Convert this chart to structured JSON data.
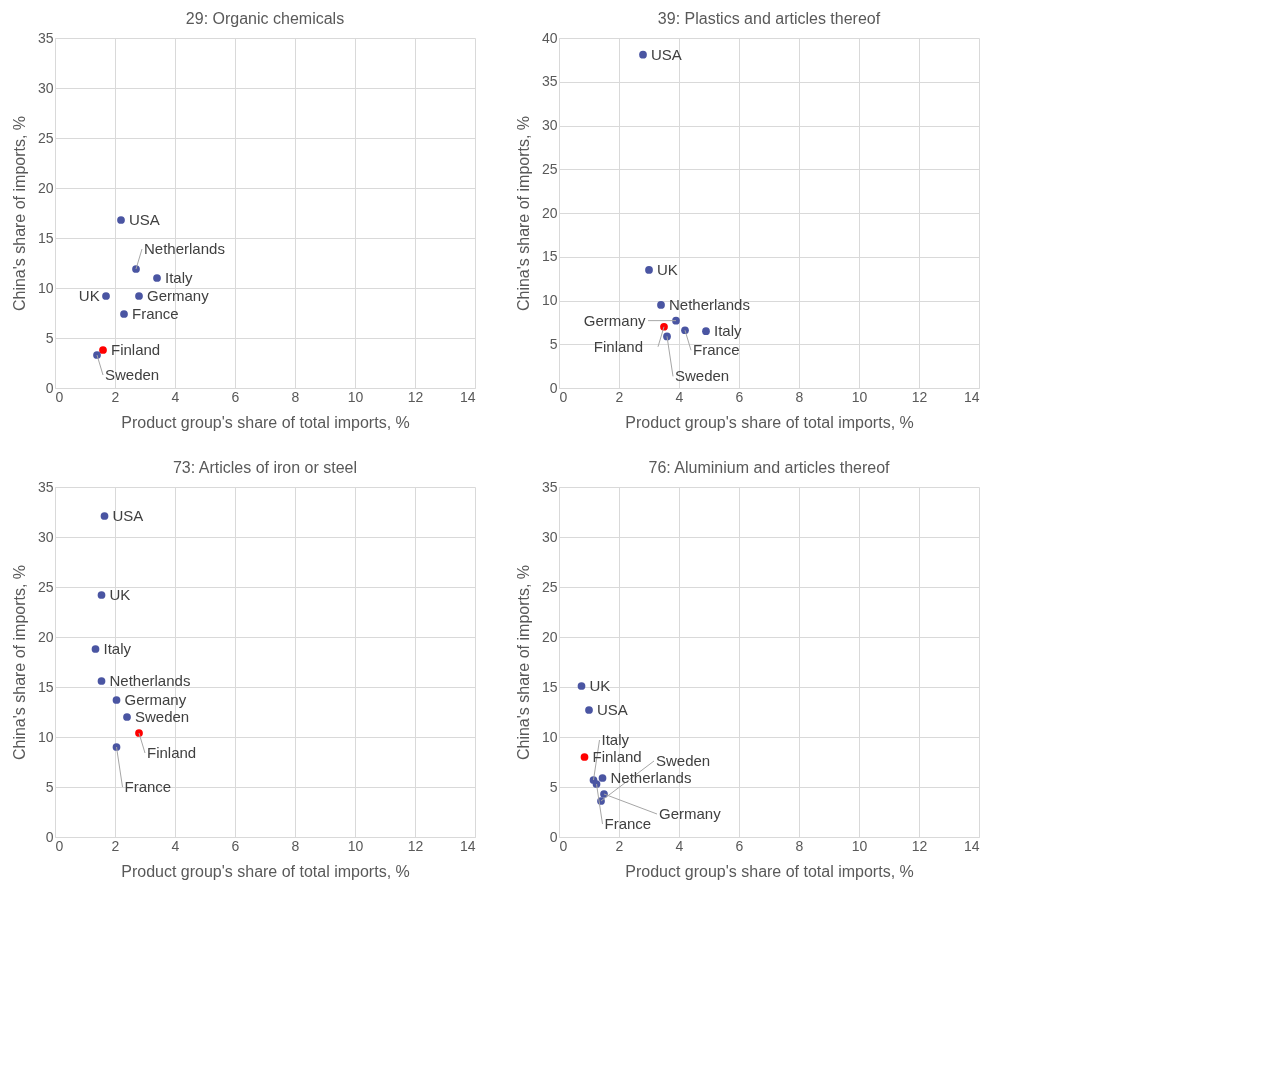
{
  "chart_data": [
    {
      "type": "scatter",
      "title": "29: Organic chemicals",
      "xlabel": "Product group's share of total imports, %",
      "ylabel": "China's share of imports, %",
      "xlim": [
        0,
        14
      ],
      "xticks": [
        0,
        2,
        4,
        6,
        8,
        10,
        12,
        14
      ],
      "ylim": [
        0,
        35
      ],
      "yticks": [
        0,
        5,
        10,
        15,
        20,
        25,
        30,
        35
      ],
      "grid": true,
      "marker": "circle",
      "series": [
        {
          "name": "USA",
          "color": "#4a55a2",
          "x": [
            2.2
          ],
          "values": [
            16.8
          ]
        },
        {
          "name": "Netherlands",
          "color": "#4a55a2",
          "x": [
            2.7
          ],
          "values": [
            11.9
          ]
        },
        {
          "name": "Italy",
          "color": "#4a55a2",
          "x": [
            3.4
          ],
          "values": [
            11.0
          ]
        },
        {
          "name": "UK",
          "color": "#4a55a2",
          "x": [
            1.7
          ],
          "values": [
            9.2
          ]
        },
        {
          "name": "Germany",
          "color": "#4a55a2",
          "x": [
            2.8
          ],
          "values": [
            9.2
          ]
        },
        {
          "name": "France",
          "color": "#4a55a2",
          "x": [
            2.3
          ],
          "values": [
            7.4
          ]
        },
        {
          "name": "Finland",
          "color": "#ff0000",
          "x": [
            1.6
          ],
          "values": [
            3.8
          ]
        },
        {
          "name": "Sweden",
          "color": "#4a55a2",
          "x": [
            1.4
          ],
          "values": [
            3.3
          ]
        }
      ]
    },
    {
      "type": "scatter",
      "title": "39: Plastics and articles thereof",
      "xlabel": "Product group's share of total imports, %",
      "ylabel": "China's share of imports, %",
      "xlim": [
        0,
        14
      ],
      "xticks": [
        0,
        2,
        4,
        6,
        8,
        10,
        12,
        14
      ],
      "ylim": [
        0,
        40
      ],
      "yticks": [
        0,
        5,
        10,
        15,
        20,
        25,
        30,
        35,
        40
      ],
      "grid": true,
      "marker": "circle",
      "series": [
        {
          "name": "USA",
          "color": "#4a55a2",
          "x": [
            2.8
          ],
          "values": [
            38.1
          ]
        },
        {
          "name": "UK",
          "color": "#4a55a2",
          "x": [
            3.0
          ],
          "values": [
            13.5
          ]
        },
        {
          "name": "Netherlands",
          "color": "#4a55a2",
          "x": [
            3.4
          ],
          "values": [
            9.5
          ]
        },
        {
          "name": "Germany",
          "color": "#4a55a2",
          "x": [
            3.9
          ],
          "values": [
            7.7
          ]
        },
        {
          "name": "Finland",
          "color": "#ff0000",
          "x": [
            3.5
          ],
          "values": [
            7.0
          ]
        },
        {
          "name": "Italy",
          "color": "#4a55a2",
          "x": [
            4.9
          ],
          "values": [
            6.5
          ]
        },
        {
          "name": "France",
          "color": "#4a55a2",
          "x": [
            4.2
          ],
          "values": [
            6.6
          ]
        },
        {
          "name": "Sweden",
          "color": "#4a55a2",
          "x": [
            3.6
          ],
          "values": [
            5.9
          ]
        }
      ]
    },
    {
      "type": "scatter",
      "title": "73: Articles of iron or steel",
      "xlabel": "Product group's share of total imports, %",
      "ylabel": "China's share of imports, %",
      "xlim": [
        0,
        14
      ],
      "xticks": [
        0,
        2,
        4,
        6,
        8,
        10,
        12,
        14
      ],
      "ylim": [
        0,
        35
      ],
      "yticks": [
        0,
        5,
        10,
        15,
        20,
        25,
        30,
        35
      ],
      "grid": true,
      "marker": "circle",
      "series": [
        {
          "name": "USA",
          "color": "#4a55a2",
          "x": [
            1.65
          ],
          "values": [
            32.1
          ]
        },
        {
          "name": "UK",
          "color": "#4a55a2",
          "x": [
            1.55
          ],
          "values": [
            24.2
          ]
        },
        {
          "name": "Italy",
          "color": "#4a55a2",
          "x": [
            1.35
          ],
          "values": [
            18.8
          ]
        },
        {
          "name": "Netherlands",
          "color": "#4a55a2",
          "x": [
            1.55
          ],
          "values": [
            15.6
          ]
        },
        {
          "name": "Germany",
          "color": "#4a55a2",
          "x": [
            2.05
          ],
          "values": [
            13.7
          ]
        },
        {
          "name": "Sweden",
          "color": "#4a55a2",
          "x": [
            2.4
          ],
          "values": [
            12.0
          ]
        },
        {
          "name": "Finland",
          "color": "#ff0000",
          "x": [
            2.8
          ],
          "values": [
            10.4
          ]
        },
        {
          "name": "France",
          "color": "#4a55a2",
          "x": [
            2.05
          ],
          "values": [
            9.0
          ]
        }
      ]
    },
    {
      "type": "scatter",
      "title": "76: Aluminium and articles thereof",
      "xlabel": "Product group's share of total imports, %",
      "ylabel": "China's share of imports, %",
      "xlim": [
        0,
        14
      ],
      "xticks": [
        0,
        2,
        4,
        6,
        8,
        10,
        12,
        14
      ],
      "ylim": [
        0,
        35
      ],
      "yticks": [
        0,
        5,
        10,
        15,
        20,
        25,
        30,
        35
      ],
      "grid": true,
      "marker": "circle",
      "series": [
        {
          "name": "UK",
          "color": "#4a55a2",
          "x": [
            0.75
          ],
          "values": [
            15.1
          ]
        },
        {
          "name": "USA",
          "color": "#4a55a2",
          "x": [
            1.0
          ],
          "values": [
            12.7
          ]
        },
        {
          "name": "Finland",
          "color": "#ff0000",
          "x": [
            0.85
          ],
          "values": [
            8.0
          ]
        },
        {
          "name": "Netherlands",
          "color": "#4a55a2",
          "x": [
            1.45
          ],
          "values": [
            5.9
          ]
        },
        {
          "name": "Italy",
          "color": "#4a55a2",
          "x": [
            1.15
          ],
          "values": [
            5.7
          ]
        },
        {
          "name": "France",
          "color": "#4a55a2",
          "x": [
            1.25
          ],
          "values": [
            5.3
          ]
        },
        {
          "name": "Germany",
          "color": "#4a55a2",
          "x": [
            1.5
          ],
          "values": [
            4.3
          ]
        },
        {
          "name": "Sweden",
          "color": "#4a55a2",
          "x": [
            1.4
          ],
          "values": [
            3.6
          ]
        }
      ]
    }
  ]
}
